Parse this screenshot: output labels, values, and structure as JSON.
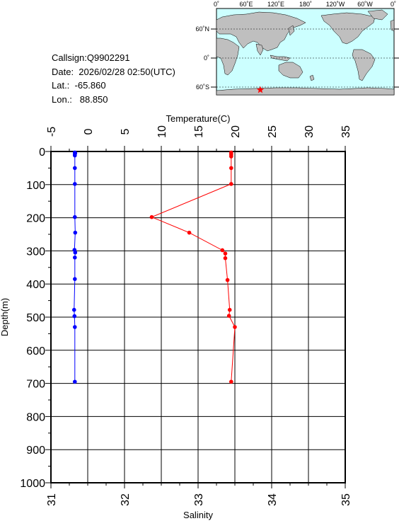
{
  "info": {
    "callsign": "Callsign:Q9902291",
    "date": "Date:  2026/02/28 02:50(UTC)",
    "lat": "Lat.:  -65.860",
    "lon": "Lon.:   88.850"
  },
  "map": {
    "lon_labels": [
      "0˚",
      "60˚E",
      "120˚E",
      "180˚",
      "120˚W",
      "60˚W",
      "0˚"
    ],
    "lat_labels": [
      "60˚N",
      "0˚",
      "60˚S"
    ],
    "ocean_color": "#ccffff",
    "land_color": "#bfbfbf",
    "marker": {
      "lat": -65.86,
      "lon": 88.85,
      "color": "#ff0000",
      "shape": "star"
    }
  },
  "chart_data": {
    "type": "line",
    "ylabel": "Depth(m)",
    "y_ticks": [
      "0",
      "100",
      "200",
      "300",
      "400",
      "500",
      "600",
      "700",
      "800",
      "900",
      "1000"
    ],
    "ylim": [
      0,
      1000
    ],
    "y_inverted": true,
    "grid": true,
    "top_axis": {
      "label": "Temperature(C)",
      "range": [
        -5,
        35
      ],
      "ticks": [
        "-5",
        "0",
        "5",
        "10",
        "15",
        "20",
        "25",
        "30",
        "35"
      ]
    },
    "bottom_axis": {
      "label": "Salinity",
      "range": [
        31,
        35
      ],
      "ticks": [
        "31",
        "32",
        "33",
        "34",
        "35"
      ]
    },
    "series": [
      {
        "axis": "temperature",
        "color": "#0000ff",
        "depth": [
          3,
          5,
          8,
          12,
          50,
          98,
          198,
          245,
          297,
          305,
          320,
          385,
          478,
          497,
          530,
          695
        ],
        "values": [
          -1.75,
          -1.7,
          -1.75,
          -1.75,
          -1.75,
          -1.75,
          -1.75,
          -1.7,
          -1.8,
          -1.7,
          -1.75,
          -1.75,
          -1.85,
          -1.8,
          -1.75,
          -1.75
        ]
      },
      {
        "axis": "salinity",
        "color": "#ff0000",
        "depth": [
          3,
          6,
          10,
          15,
          50,
          98,
          198,
          245,
          298,
          308,
          322,
          388,
          478,
          496,
          530,
          695
        ],
        "values": [
          33.45,
          33.45,
          33.45,
          33.45,
          33.45,
          33.45,
          32.37,
          32.88,
          33.33,
          33.37,
          33.37,
          33.4,
          33.43,
          33.42,
          33.5,
          33.45
        ]
      }
    ]
  }
}
